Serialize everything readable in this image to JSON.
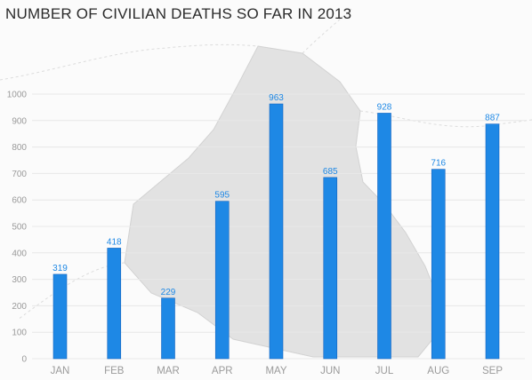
{
  "colors": {
    "bar": "#1e88e5",
    "bar_stroke": "#1565c0",
    "label": "#1e88e5",
    "grid": "#e8e8e8",
    "map_fill": "#e2e2e2",
    "map_border": "#d2d2d2",
    "background": "#fbfbfb"
  },
  "chart_data": {
    "type": "bar",
    "title": "NUMBER OF CIVILIAN DEATHS SO FAR IN 2013",
    "categories": [
      "JAN",
      "FEB",
      "MAR",
      "APR",
      "MAY",
      "JUN",
      "JUL",
      "AUG",
      "SEP"
    ],
    "values": [
      319,
      418,
      229,
      595,
      963,
      685,
      928,
      716,
      887
    ],
    "yticks": [
      0,
      100,
      200,
      300,
      400,
      500,
      600,
      700,
      800,
      900,
      1000
    ],
    "ylim": [
      0,
      1000
    ],
    "grid": true,
    "legend": "none",
    "data_labels": true
  }
}
